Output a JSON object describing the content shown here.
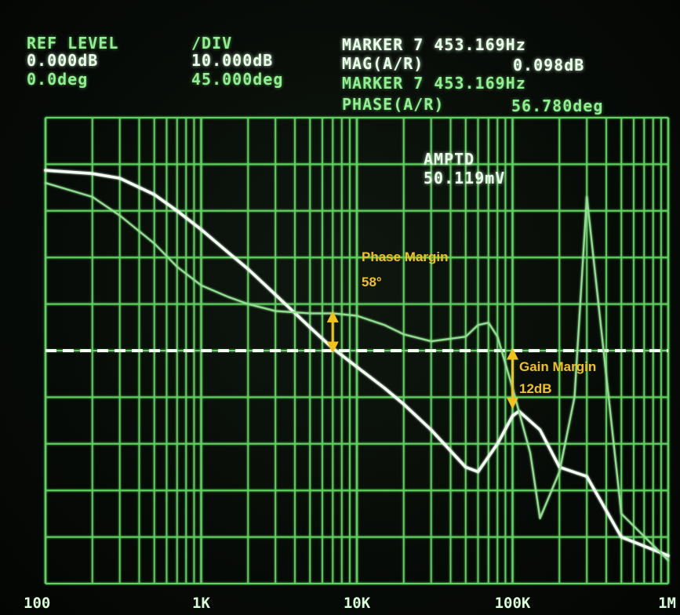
{
  "header": {
    "ref_level_label": "REF LEVEL",
    "ref_level_mag": "0.000dB",
    "ref_level_phase": "0.0deg",
    "div_label": "/DIV",
    "div_mag": "10.000dB",
    "div_phase": "45.000deg",
    "marker_mag_line": "MARKER 7 453.169Hz",
    "mag_label": "MAG(A/R)",
    "mag_value": "0.098dB",
    "marker_phase_line": "MARKER 7 453.169Hz",
    "phase_label": "PHASE(A/R)",
    "phase_value": "56.780deg",
    "amptd_label": "AMPTD",
    "amptd_value": "50.119mV"
  },
  "annotations": {
    "phase_margin_label": "Phase Margin",
    "phase_margin_value": "58°",
    "gain_margin_label": "Gain Margin",
    "gain_margin_value": "12dB"
  },
  "colors": {
    "grid": "#5fd15f",
    "magnitude_trace": "#f2fff2",
    "phase_trace": "#8fe08f",
    "annotation": "#f2c21a"
  },
  "chart_data": {
    "type": "line",
    "x_scale": "log",
    "xlim": [
      100,
      1000000
    ],
    "x_tick_labels": [
      "100",
      "1K",
      "10K",
      "100K",
      "1M"
    ],
    "grid": true,
    "y_divisions": 10,
    "reference_line_dB": 0,
    "series": [
      {
        "x": [
          100,
          200,
          300,
          500,
          700,
          1000,
          1500,
          2000,
          3000,
          5000,
          7000,
          10000,
          15000,
          20000,
          30000,
          50000,
          60000,
          80000,
          100000,
          110000,
          150000,
          200000,
          300000,
          500000,
          1000000
        ],
        "y": [
          38.7,
          38.0,
          37.0,
          33.5,
          30.0,
          26.0,
          21.0,
          17.5,
          12.0,
          5.0,
          0.5,
          -3.5,
          -8.0,
          -11.5,
          -17.0,
          -25.0,
          -26.0,
          -20.0,
          -14.0,
          -13.0,
          -17.0,
          -25.0,
          -27.0,
          -40.0,
          -44.0
        ]
      },
      {
        "x": [
          100,
          200,
          300,
          500,
          700,
          1000,
          1500,
          2000,
          3000,
          5000,
          7000,
          10000,
          15000,
          20000,
          30000,
          50000,
          60000,
          70000,
          80000,
          100000,
          130000,
          150000,
          200000,
          250000,
          300000,
          500000,
          1000000
        ],
        "y": [
          36.0,
          33.0,
          29.0,
          23.0,
          18.0,
          14.0,
          11.5,
          10.0,
          8.5,
          8.0,
          8.0,
          7.5,
          5.5,
          3.5,
          2.0,
          3.0,
          5.5,
          6.0,
          3.0,
          -8.0,
          -22.0,
          -36.0,
          -26.0,
          -10.0,
          33.0,
          -35.0,
          -45.0
        ]
      }
    ],
    "markers": [
      {
        "x": 7000,
        "y_top": 8.0,
        "y_bottom": 0
      },
      {
        "x": 100000,
        "y_top": 0,
        "y_bottom": -12
      }
    ]
  }
}
